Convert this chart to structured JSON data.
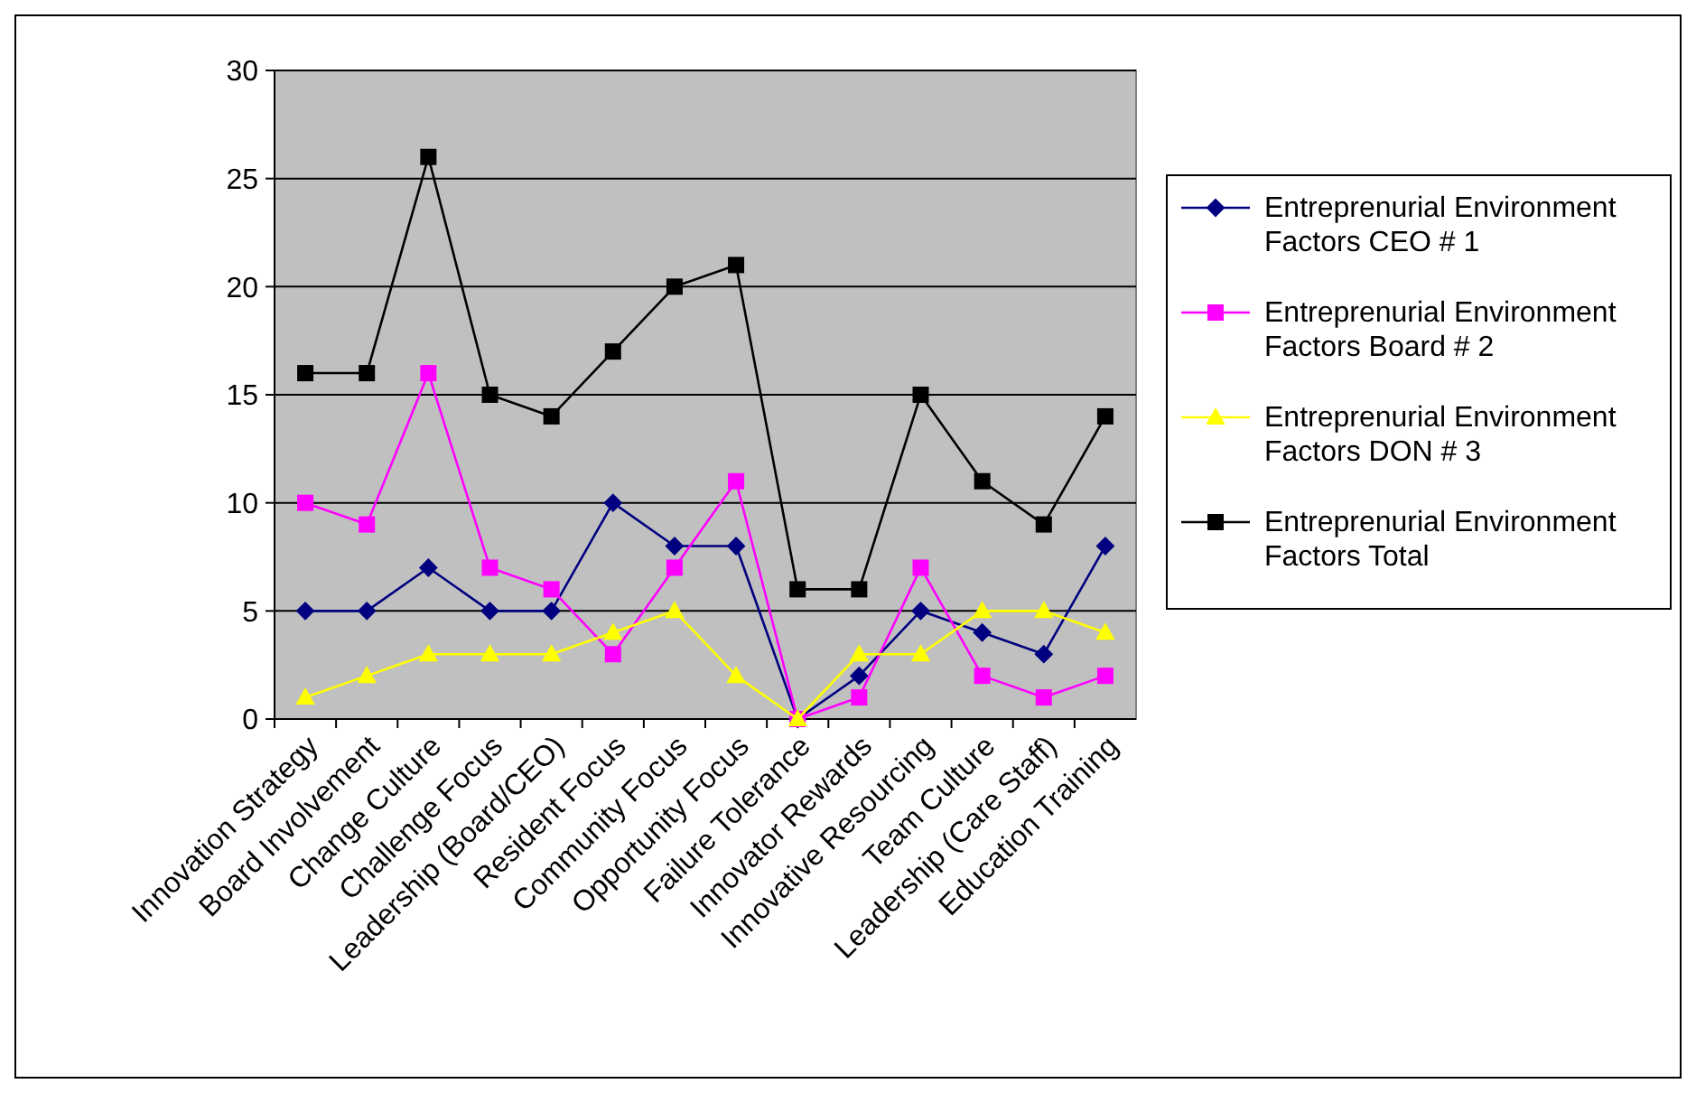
{
  "chart_data": {
    "type": "line",
    "categories": [
      "Innovation Strategy",
      "Board Involvement",
      "Change Culture",
      "Challenge Focus",
      "Leadership (Board/CEO)",
      "Resident Focus",
      "Community Focus",
      "Opportunity Focus",
      "Failure Tolerance",
      "Innovator Rewards",
      "Innovative Resourcing",
      "Team Culture",
      "Leadership (Care Staff)",
      "Education Training"
    ],
    "series": [
      {
        "name": "Entreprenurial Environment Factors CEO # 1",
        "color": "#000080",
        "marker": "diamond",
        "values": [
          5,
          5,
          7,
          5,
          5,
          10,
          8,
          8,
          0,
          2,
          5,
          4,
          3,
          8
        ]
      },
      {
        "name": "Entreprenurial Environment Factors Board # 2",
        "color": "#ff00ff",
        "marker": "square",
        "values": [
          10,
          9,
          16,
          7,
          6,
          3,
          7,
          11,
          0,
          1,
          7,
          2,
          1,
          2
        ]
      },
      {
        "name": "Entreprenurial Environment Factors DON # 3",
        "color": "#ffff00",
        "marker": "triangle",
        "values": [
          1,
          2,
          3,
          3,
          3,
          4,
          5,
          2,
          0,
          3,
          3,
          5,
          5,
          4
        ]
      },
      {
        "name": "Entreprenurial Environment Factors Total",
        "color": "#000000",
        "marker": "square",
        "values": [
          16,
          16,
          26,
          15,
          14,
          17,
          20,
          21,
          6,
          6,
          15,
          11,
          9,
          14
        ]
      }
    ],
    "ylim": [
      0,
      30
    ],
    "yticks": [
      0,
      5,
      10,
      15,
      20,
      25,
      30
    ],
    "grid": "y",
    "legend": "right"
  }
}
